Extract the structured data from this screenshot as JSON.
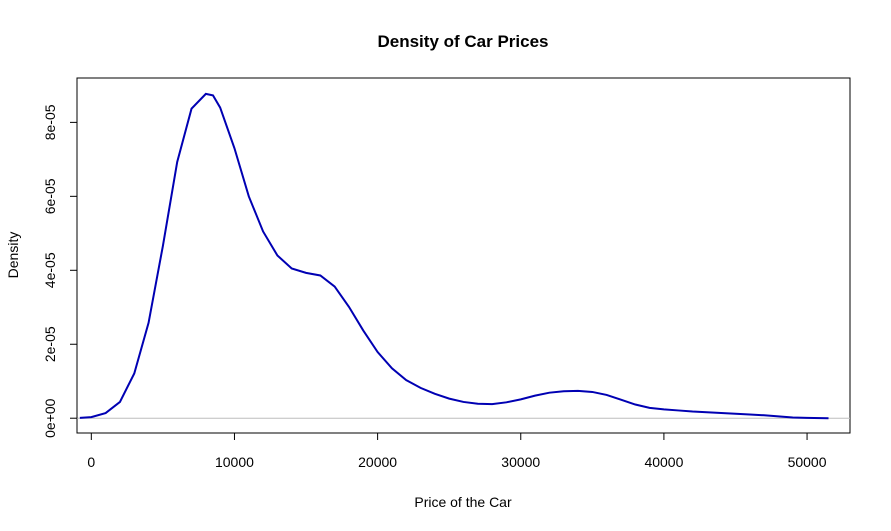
{
  "chart_data": {
    "type": "line",
    "title": "Density of Car Prices",
    "xlabel": "Price of the Car",
    "ylabel": "Density",
    "xlim": [
      -1000,
      53000
    ],
    "ylim": [
      -4e-06,
      9.2e-05
    ],
    "x_ticks": [
      0,
      10000,
      20000,
      30000,
      40000,
      50000
    ],
    "x_tick_labels": [
      "0",
      "10000",
      "20000",
      "30000",
      "40000",
      "50000"
    ],
    "y_ticks": [
      0,
      2e-05,
      4e-05,
      6e-05,
      8e-05
    ],
    "y_tick_labels": [
      "0e+00",
      "2e-05",
      "4e-05",
      "6e-05",
      "8e-05"
    ],
    "grid": false,
    "baseline": 0,
    "line_color": "#0000b3",
    "baseline_color": "#bebebe",
    "series": [
      {
        "x": [
          -800,
          0,
          1000,
          2000,
          3000,
          4000,
          5000,
          6000,
          7000,
          8000,
          8500,
          9000,
          10000,
          11000,
          12000,
          13000,
          14000,
          15000,
          16000,
          17000,
          18000,
          19000,
          20000,
          21000,
          22000,
          23000,
          24000,
          25000,
          26000,
          27000,
          28000,
          29000,
          30000,
          31000,
          32000,
          33000,
          34000,
          35000,
          36000,
          37000,
          38000,
          39000,
          40000,
          41000,
          42000,
          43000,
          44000,
          45000,
          46000,
          47000,
          48000,
          49000,
          50000,
          51500
        ],
        "values": [
          1e-07,
          3e-07,
          1.4e-06,
          4.4e-06,
          1.21e-05,
          2.58e-05,
          4.66e-05,
          6.93e-05,
          8.37e-05,
          8.77e-05,
          8.73e-05,
          8.4e-05,
          7.3e-05,
          6e-05,
          5.05e-05,
          4.4e-05,
          4.05e-05,
          3.93e-05,
          3.86e-05,
          3.56e-05,
          3.01e-05,
          2.37e-05,
          1.79e-05,
          1.35e-05,
          1.03e-05,
          8.2e-06,
          6.6e-06,
          5.3e-06,
          4.4e-06,
          3.9e-06,
          3.8e-06,
          4.3e-06,
          5.1e-06,
          6.1e-06,
          6.9e-06,
          7.3e-06,
          7.4e-06,
          7.1e-06,
          6.3e-06,
          5e-06,
          3.7e-06,
          2.8e-06,
          2.4e-06,
          2.1e-06,
          1.8e-06,
          1.6e-06,
          1.4e-06,
          1.2e-06,
          1e-06,
          8e-07,
          5e-07,
          2e-07,
          1e-07,
          0
        ]
      }
    ]
  }
}
